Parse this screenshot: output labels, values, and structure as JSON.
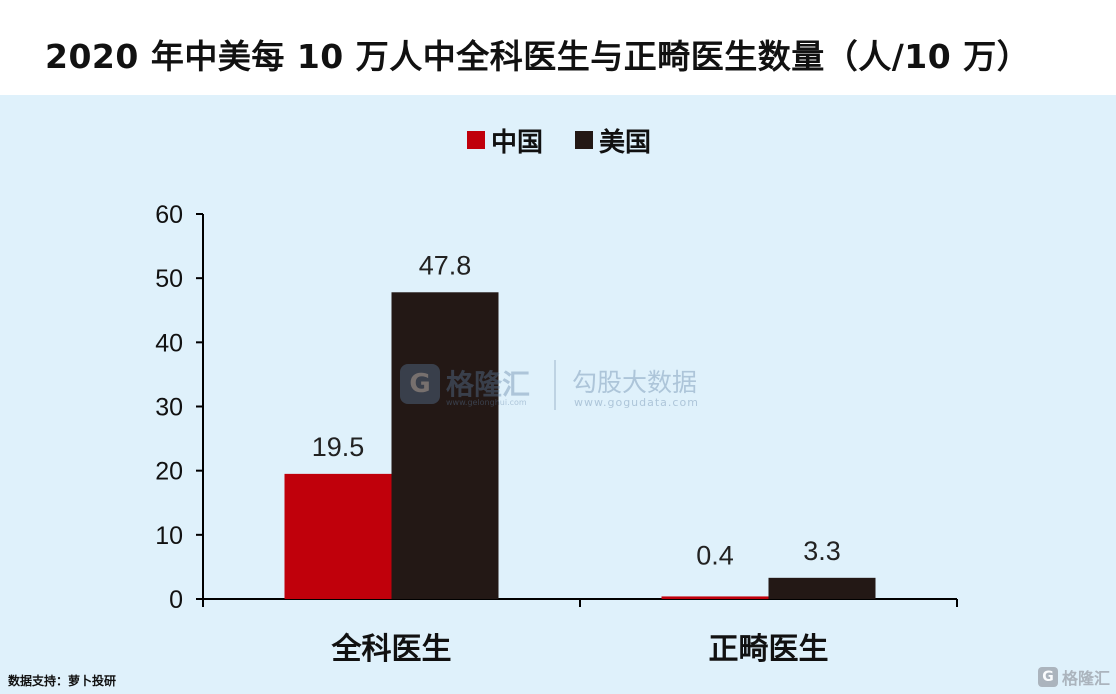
{
  "title": "2020 年中美每 10 万人中全科医生与正畸医生数量（人/10 万）",
  "source": "数据支持：萝卜投研",
  "watermark": {
    "brand": "格隆汇",
    "brand_url": "www.gelonghui.com",
    "partner": "勾股大数据",
    "partner_url": "www.gogudata.com",
    "corner": "格隆汇"
  },
  "colors": {
    "china": "#c0000b",
    "usa": "#231815",
    "panel_bg": "#dff1fb"
  },
  "chart_data": {
    "type": "bar",
    "categories": [
      "全科医生",
      "正畸医生"
    ],
    "series": [
      {
        "name": "中国",
        "values": [
          19.5,
          0.4
        ],
        "labels": [
          "19.5",
          "0.4"
        ]
      },
      {
        "name": "美国",
        "values": [
          47.8,
          3.3
        ],
        "labels": [
          "47.8",
          "3.3"
        ]
      }
    ],
    "ylim": [
      0,
      60
    ],
    "yticks": [
      "0",
      "10",
      "20",
      "30",
      "40",
      "50",
      "60"
    ],
    "legend_position": "top",
    "grid": false
  }
}
